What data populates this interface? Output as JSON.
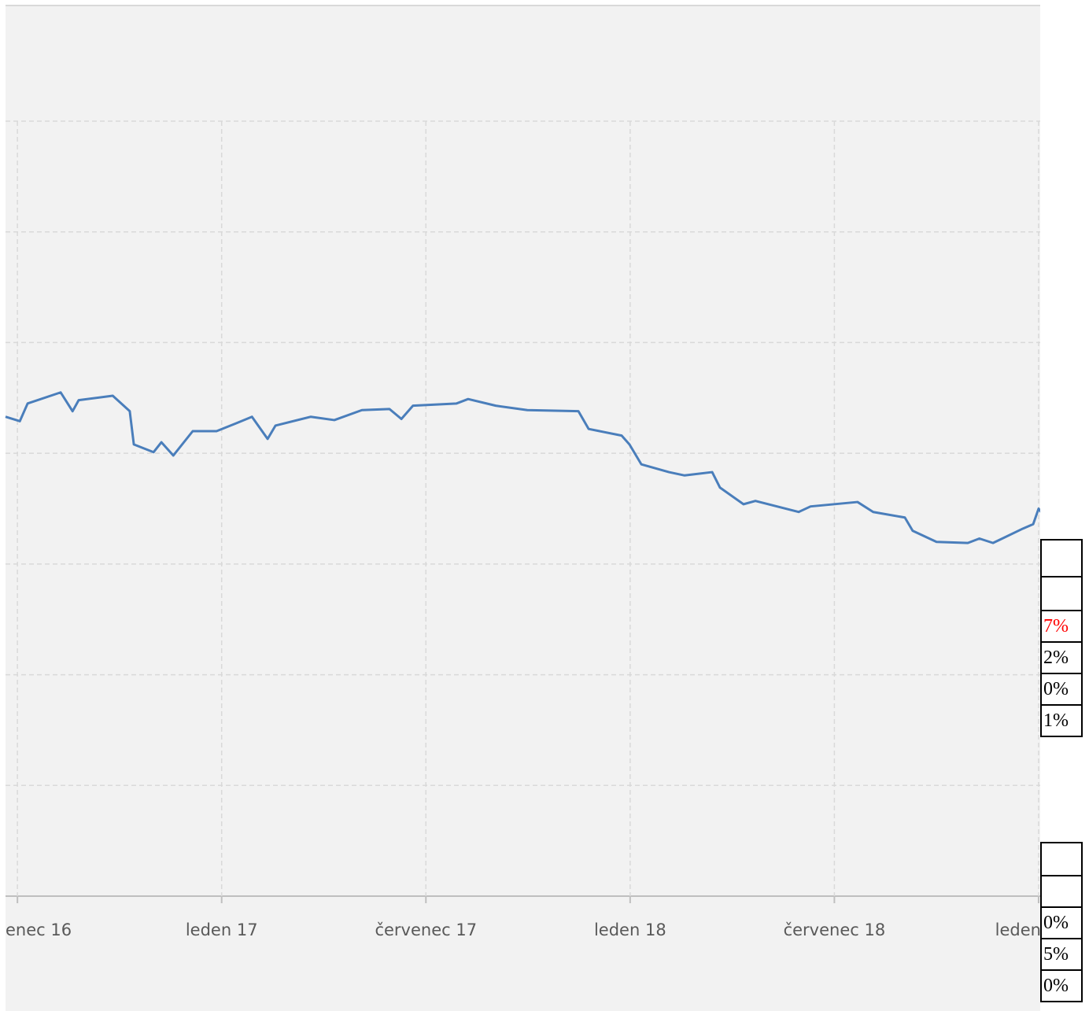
{
  "chart_data": {
    "type": "line",
    "x": [
      -0.35,
      0.07,
      0.3,
      1.27,
      1.62,
      1.8,
      2.8,
      3.3,
      3.42,
      4.0,
      4.23,
      4.58,
      5.15,
      5.85,
      6.42,
      6.89,
      7.35,
      7.58,
      8.62,
      9.31,
      10.12,
      10.93,
      11.28,
      11.62,
      12.9,
      13.24,
      14.05,
      14.98,
      16.48,
      16.78,
      17.75,
      17.98,
      18.33,
      19.14,
      19.6,
      20.41,
      20.64,
      21.33,
      21.68,
      22.95,
      23.3,
      24.68,
      25.14,
      26.07,
      26.3,
      27.0,
      27.92,
      28.26,
      28.66,
      29.54,
      29.84,
      30.0,
      30.07
    ],
    "series": [
      {
        "color": "#4a7ebb",
        "values": [
          4.33,
          4.29,
          4.45,
          4.55,
          4.38,
          4.48,
          4.52,
          4.38,
          4.08,
          4.01,
          4.1,
          3.98,
          4.2,
          4.2,
          4.27,
          4.33,
          4.13,
          4.25,
          4.33,
          4.3,
          4.39,
          4.4,
          4.31,
          4.43,
          4.45,
          4.49,
          4.43,
          4.39,
          4.38,
          4.22,
          4.16,
          4.08,
          3.9,
          3.83,
          3.8,
          3.83,
          3.69,
          3.54,
          3.57,
          3.47,
          3.52,
          3.56,
          3.47,
          3.42,
          3.3,
          3.2,
          3.19,
          3.23,
          3.19,
          3.32,
          3.36,
          3.5,
          3.47
        ]
      }
    ],
    "xlim": [
      -0.35,
      30.07
    ],
    "xticks": [
      {
        "value": 0,
        "label": "enec 16"
      },
      {
        "value": 6,
        "label": "leden 17"
      },
      {
        "value": 12,
        "label": "červenec 17"
      },
      {
        "value": 18,
        "label": "leden 18"
      },
      {
        "value": 24,
        "label": "červenec 18"
      },
      {
        "value": 30,
        "label": "leden"
      }
    ],
    "ylim": [
      0,
      7
    ],
    "yticks": [
      1,
      2,
      3,
      4,
      5,
      6,
      7
    ],
    "grid": true
  },
  "side_tables": [
    {
      "cells": [
        {
          "text": "7%",
          "color": "#ff0000"
        },
        {
          "text": "2%",
          "color": "#000000"
        },
        {
          "text": "0%",
          "color": "#000000"
        },
        {
          "text": "1%",
          "color": "#000000"
        }
      ]
    },
    {
      "cells": [
        {
          "text": "0%",
          "color": "#000000"
        },
        {
          "text": "5%",
          "color": "#000000"
        },
        {
          "text": "0%",
          "color": "#000000"
        }
      ]
    }
  ]
}
